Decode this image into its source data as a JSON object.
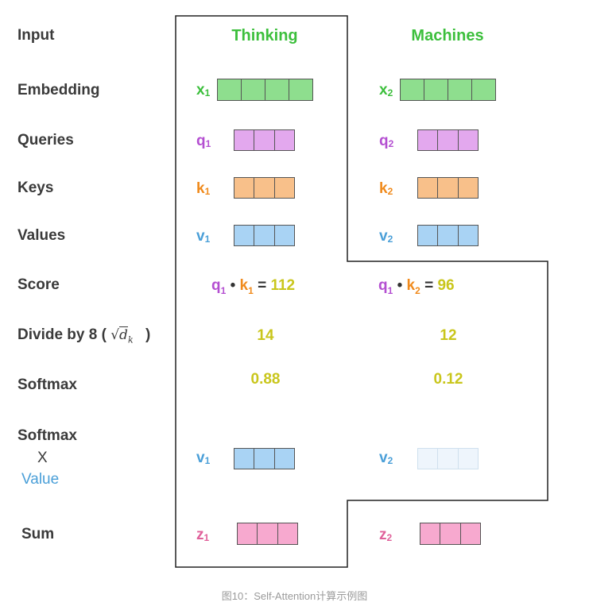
{
  "rows": {
    "input": "Input",
    "embedding": "Embedding",
    "queries": "Queries",
    "keys": "Keys",
    "values": "Values",
    "score": "Score",
    "divide": "Divide by 8 (",
    "divide_close": ")",
    "sqrt_symbol": "√",
    "sqrt_d": "d",
    "sqrt_k": "k",
    "softmax": "Softmax",
    "softmax_x_1": "Softmax",
    "softmax_x_2": "X",
    "softmax_x_3": "Value",
    "sum": "Sum"
  },
  "colors": {
    "green": "#3cbf3c",
    "purple": "#b44fd1",
    "orange": "#f08a1c",
    "blue": "#4a9fd8",
    "yellow": "#c9c61c",
    "pink": "#e0609a",
    "embed_fill": "#8ede8e",
    "query_fill": "#e3a8ee",
    "key_fill": "#f8c08a",
    "value_fill": "#a9d3f4",
    "value_faded_fill": "#eef5fc",
    "sum_fill": "#f7a9cf"
  },
  "columns": [
    {
      "title": "Thinking",
      "x": "x",
      "x_sub": "1",
      "q": "q",
      "q_sub": "1",
      "k": "k",
      "k_sub": "1",
      "v": "v",
      "v_sub": "1",
      "score_q": "q",
      "score_q_sub": "1",
      "score_dot": "•",
      "score_k": "k",
      "score_k_sub": "1",
      "score_eq": "=",
      "score_val": "112",
      "divided": "14",
      "softmax": "0.88",
      "sv": "v",
      "sv_sub": "1",
      "z": "z",
      "z_sub": "1"
    },
    {
      "title": "Machines",
      "x": "x",
      "x_sub": "2",
      "q": "q",
      "q_sub": "2",
      "k": "k",
      "k_sub": "2",
      "v": "v",
      "v_sub": "2",
      "score_q": "q",
      "score_q_sub": "1",
      "score_dot": "•",
      "score_k": "k",
      "score_k_sub": "2",
      "score_eq": "=",
      "score_val": "96",
      "divided": "12",
      "softmax": "0.12",
      "sv": "v",
      "sv_sub": "2",
      "z": "z",
      "z_sub": "2"
    }
  ],
  "caption": "图10：Self-Attention计算示例图"
}
